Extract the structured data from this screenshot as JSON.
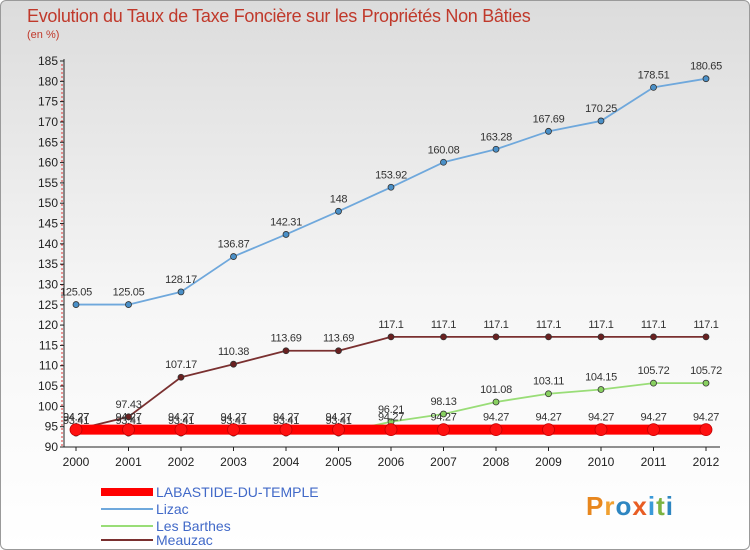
{
  "title": "Evolution du Taux de Taxe Foncière sur les Propriétés Non Bâties",
  "unit_label": "(en %)",
  "logo_text": "Proxiti",
  "chart_data": {
    "type": "line",
    "title": "Evolution du Taux de Taxe Foncière sur les Propriétés Non Bâties",
    "ylabel": "(en %)",
    "xlabel": "",
    "ylim": [
      90,
      185
    ],
    "yticks": [
      90,
      95,
      100,
      105,
      110,
      115,
      120,
      125,
      130,
      135,
      140,
      145,
      150,
      155,
      160,
      165,
      170,
      175,
      180,
      185
    ],
    "categories": [
      "2000",
      "2001",
      "2002",
      "2003",
      "2004",
      "2005",
      "2006",
      "2007",
      "2008",
      "2009",
      "2010",
      "2011",
      "2012"
    ],
    "grid": false,
    "legend_position": "bottom-left",
    "series": [
      {
        "name": "LABASTIDE-DU-TEMPLE",
        "color": "#ff0000",
        "values": [
          94.27,
          94.27,
          94.27,
          94.27,
          94.27,
          94.27,
          94.27,
          94.27,
          94.27,
          94.27,
          94.27,
          94.27,
          94.27
        ],
        "labels": [
          "94.27",
          "94.27",
          "94.27",
          "94.27",
          "94.27",
          "94.27",
          "94.27",
          "94.27",
          "94.27",
          "94.27",
          "94.27",
          "94.27",
          "94.27"
        ]
      },
      {
        "name": "Lizac",
        "color": "#6fa8dc",
        "values": [
          125.05,
          125.05,
          128.17,
          136.87,
          142.31,
          148,
          153.92,
          160.08,
          163.28,
          167.69,
          170.25,
          178.51,
          180.65
        ],
        "labels": [
          "125.05",
          "125.05",
          "128.17",
          "136.87",
          "142.31",
          "148",
          "153.92",
          "160.08",
          "163.28",
          "167.69",
          "170.25",
          "178.51",
          "180.65"
        ]
      },
      {
        "name": "Les Barthes",
        "color": "#99dd77",
        "values": [
          93.41,
          93.41,
          93.41,
          93.41,
          93.41,
          93.41,
          96.21,
          98.13,
          101.08,
          103.11,
          104.15,
          105.72,
          105.72
        ],
        "labels": [
          "93.41",
          "93.41",
          "93.41",
          "93.41",
          "93.41",
          "93.41",
          "96.21",
          "98.13",
          "101.08",
          "103.11",
          "104.15",
          "105.72",
          "105.72"
        ]
      },
      {
        "name": "Meauzac",
        "color": "#7a3030",
        "values": [
          94.27,
          97.43,
          107.17,
          110.38,
          113.69,
          113.69,
          117.1,
          117.1,
          117.1,
          117.1,
          117.1,
          117.1,
          117.1
        ],
        "labels": [
          "94.27",
          "97.43",
          "107.17",
          "110.38",
          "113.69",
          "113.69",
          "117.1",
          "117.1",
          "117.1",
          "117.1",
          "117.1",
          "117.1",
          "117.1"
        ]
      }
    ]
  }
}
